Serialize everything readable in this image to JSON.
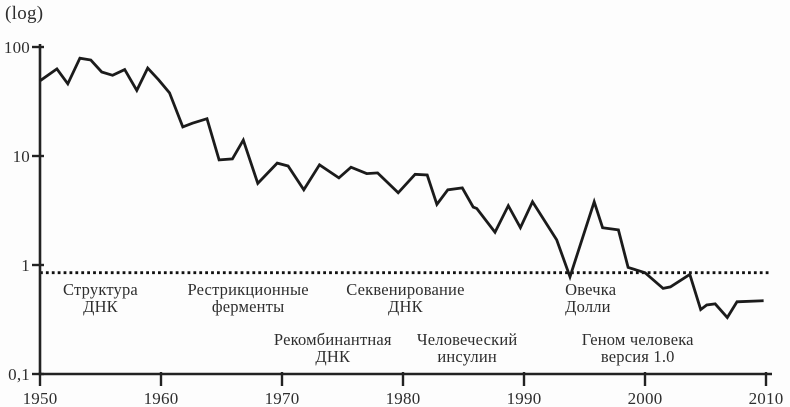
{
  "colors": {
    "background": "#fdfdfd",
    "line": "#1b1b1b",
    "axis": "#222222",
    "text": "#2e2e2e",
    "dotted": "#111111"
  },
  "chart_data": {
    "type": "line",
    "title": "",
    "grid": false,
    "legend": false,
    "y_axis": {
      "label": "(log)",
      "scale": "log",
      "range": [
        0.1,
        100
      ],
      "ticks": [
        100,
        10,
        1,
        0.1
      ],
      "tick_labels": [
        "100",
        "10",
        "1",
        "0,1"
      ]
    },
    "x_axis": {
      "range": [
        1950,
        2010
      ],
      "ticks": [
        1950,
        1960,
        1970,
        1980,
        1990,
        2000,
        2010
      ],
      "tick_labels": [
        "1950",
        "1960",
        "1970",
        "1980",
        "1990",
        "2000",
        "2010"
      ]
    },
    "threshold_line": {
      "value": 0.85,
      "style": "dotted"
    },
    "series": [
      {
        "points": [
          [
            1950.0,
            49
          ],
          [
            1951.4,
            63
          ],
          [
            1952.3,
            46
          ],
          [
            1953.3,
            79
          ],
          [
            1954.2,
            76
          ],
          [
            1955.1,
            59
          ],
          [
            1956.0,
            55
          ],
          [
            1957.0,
            62
          ],
          [
            1958.0,
            40
          ],
          [
            1958.9,
            64
          ],
          [
            1959.8,
            50
          ],
          [
            1960.7,
            38
          ],
          [
            1961.8,
            18.5
          ],
          [
            1962.6,
            20
          ],
          [
            1963.8,
            22
          ],
          [
            1964.8,
            9.2
          ],
          [
            1965.9,
            9.4
          ],
          [
            1966.8,
            14
          ],
          [
            1968.0,
            5.6
          ],
          [
            1969.6,
            8.6
          ],
          [
            1970.5,
            8.1
          ],
          [
            1971.8,
            4.9
          ],
          [
            1973.1,
            8.3
          ],
          [
            1974.7,
            6.3
          ],
          [
            1975.7,
            7.9
          ],
          [
            1977.0,
            6.9
          ],
          [
            1977.9,
            7.0
          ],
          [
            1979.6,
            4.6
          ],
          [
            1981.0,
            6.8
          ],
          [
            1982.0,
            6.7
          ],
          [
            1982.8,
            3.6
          ],
          [
            1983.7,
            4.9
          ],
          [
            1984.9,
            5.1
          ],
          [
            1985.8,
            3.4
          ],
          [
            1986.1,
            3.3
          ],
          [
            1987.6,
            2.0
          ],
          [
            1988.7,
            3.5
          ],
          [
            1989.7,
            2.2
          ],
          [
            1990.7,
            3.8
          ],
          [
            1992.7,
            1.7
          ],
          [
            1993.8,
            0.78
          ],
          [
            1995.8,
            3.8
          ],
          [
            1996.5,
            2.2
          ],
          [
            1997.8,
            2.1
          ],
          [
            1998.6,
            0.95
          ],
          [
            2000.0,
            0.85
          ],
          [
            2001.5,
            0.61
          ],
          [
            2002.1,
            0.63
          ],
          [
            2003.7,
            0.82
          ],
          [
            2004.6,
            0.39
          ],
          [
            2005.1,
            0.43
          ],
          [
            2005.8,
            0.44
          ],
          [
            2006.8,
            0.33
          ],
          [
            2007.6,
            0.46
          ],
          [
            2009.8,
            0.47
          ]
        ]
      }
    ],
    "annotations": [
      {
        "lines": [
          "Структура",
          "ДНК"
        ],
        "year": 1955.0,
        "row": "upper",
        "align": "center"
      },
      {
        "lines": [
          "Рестрикционные",
          "ферменты"
        ],
        "year": 1967.2,
        "row": "upper",
        "align": "center"
      },
      {
        "lines": [
          "Рекомбинантная",
          "ДНК"
        ],
        "year": 1974.2,
        "row": "lower",
        "align": "center"
      },
      {
        "lines": [
          "Секвенирование",
          "ДНК"
        ],
        "year": 1980.2,
        "row": "upper",
        "align": "center"
      },
      {
        "lines": [
          "Человеческий",
          "инсулин"
        ],
        "year": 1985.3,
        "row": "lower",
        "align": "center"
      },
      {
        "lines": [
          "Овечка",
          "Долли"
        ],
        "year": 1993.4,
        "row": "upper",
        "align": "left"
      },
      {
        "lines": [
          "Геном человека",
          "версия 1.0"
        ],
        "year": 1999.4,
        "row": "lower",
        "align": "center"
      }
    ]
  }
}
